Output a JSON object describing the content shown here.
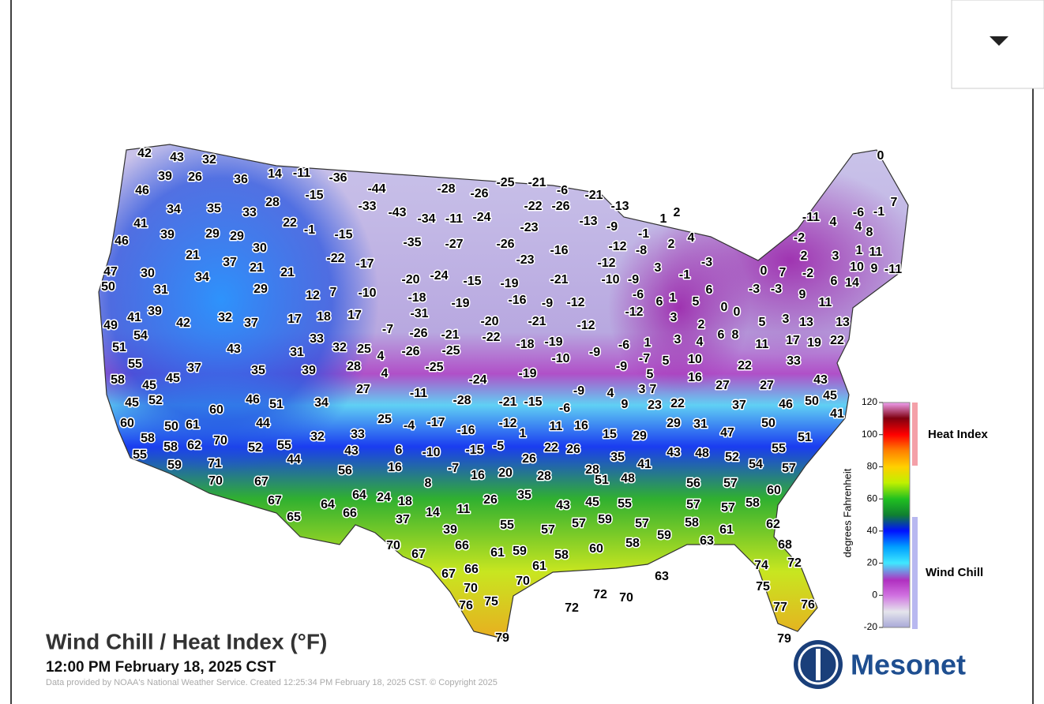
{
  "title": "Wind Chill / Heat Index (°F)",
  "subtitle": "12:00 PM February 18, 2025 CST",
  "credit": "Data provided by NOAA's National Weather Service. Created 12:25:34 PM February 18, 2025 CST. © Copyright 2025",
  "logo": "Mesonet",
  "colorbar": {
    "label": "degrees Fahrenheit",
    "ylim": [
      -20,
      120
    ],
    "yticks": [
      -20,
      0,
      20,
      40,
      60,
      80,
      100,
      120
    ],
    "ranges": [
      "Heat Index",
      "Wind Chill"
    ]
  },
  "stations": [
    42,
    43,
    32,
    39,
    26,
    36,
    14,
    -11,
    -36,
    46,
    28,
    -15,
    -44,
    -28,
    -26,
    -25,
    -21,
    -6,
    -21,
    -13,
    34,
    35,
    33,
    -33,
    -43,
    -34,
    -11,
    -24,
    -22,
    -26,
    -13,
    -9,
    1,
    2,
    41,
    22,
    -1,
    -15,
    -23,
    -1,
    4,
    39,
    29,
    29,
    46,
    -35,
    -27,
    -26,
    -16,
    -12,
    -8,
    2,
    30,
    21,
    37,
    21,
    -22,
    -17,
    -23,
    -12,
    3,
    -3,
    47,
    30,
    34,
    21,
    -20,
    -24,
    -15,
    -19,
    -21,
    -10,
    -9,
    -1,
    50,
    31,
    29,
    12,
    7,
    -10,
    -18,
    -19,
    -16,
    -9,
    -12,
    -6,
    1,
    5,
    6,
    39,
    41,
    42,
    32,
    37,
    17,
    18,
    17,
    -31,
    -20,
    -21,
    -12,
    -12,
    6,
    3,
    0,
    0,
    49,
    54,
    33,
    -7,
    -26,
    -21,
    -22,
    -18,
    -19,
    2,
    6,
    8,
    5,
    3,
    13,
    13,
    51,
    43,
    31,
    32,
    25,
    4,
    -26,
    -25,
    -9,
    -6,
    1,
    3,
    4,
    11,
    17,
    19,
    22,
    55,
    35,
    39,
    28,
    4,
    -10,
    -9,
    -7,
    5,
    10,
    22,
    33,
    58,
    45,
    45,
    37,
    -25,
    -24,
    -19,
    5,
    16,
    27,
    27,
    43,
    45,
    52,
    46,
    51,
    34,
    27,
    -11,
    -28,
    -21,
    -15,
    -9,
    4,
    3,
    7,
    45,
    60,
    9,
    23,
    22,
    37,
    46,
    50,
    41,
    60,
    50,
    61,
    44,
    25,
    -4,
    -17,
    -16,
    -12,
    -6,
    11,
    16,
    29,
    31,
    47,
    50,
    51,
    58,
    70,
    32,
    33,
    1,
    15,
    29,
    55,
    58,
    62,
    52,
    55,
    43,
    6,
    -10,
    -15,
    -5,
    22,
    26,
    43,
    48,
    52,
    54,
    55,
    59,
    71,
    44,
    56,
    16,
    -7,
    16,
    20,
    26,
    35,
    41,
    28,
    57,
    70,
    67,
    8,
    28,
    51,
    48,
    56,
    57,
    60,
    67,
    64,
    64,
    24,
    18,
    26,
    35,
    11,
    14,
    43,
    45,
    55,
    57,
    57,
    58,
    65,
    66,
    37,
    39,
    55,
    57,
    57,
    59,
    57,
    58,
    61,
    62,
    59,
    63,
    70,
    67,
    66,
    61,
    59,
    58,
    60,
    58,
    68,
    61,
    67,
    66,
    74,
    72,
    63,
    70,
    70,
    75,
    72,
    70,
    72,
    76,
    75,
    77,
    76,
    79,
    79,
    0,
    -11,
    4,
    -6,
    -1,
    7,
    4,
    8,
    -2,
    2,
    3,
    1,
    11,
    0,
    7,
    -2,
    10,
    9,
    -11,
    6,
    14,
    -3,
    -3,
    9,
    11
  ]
}
